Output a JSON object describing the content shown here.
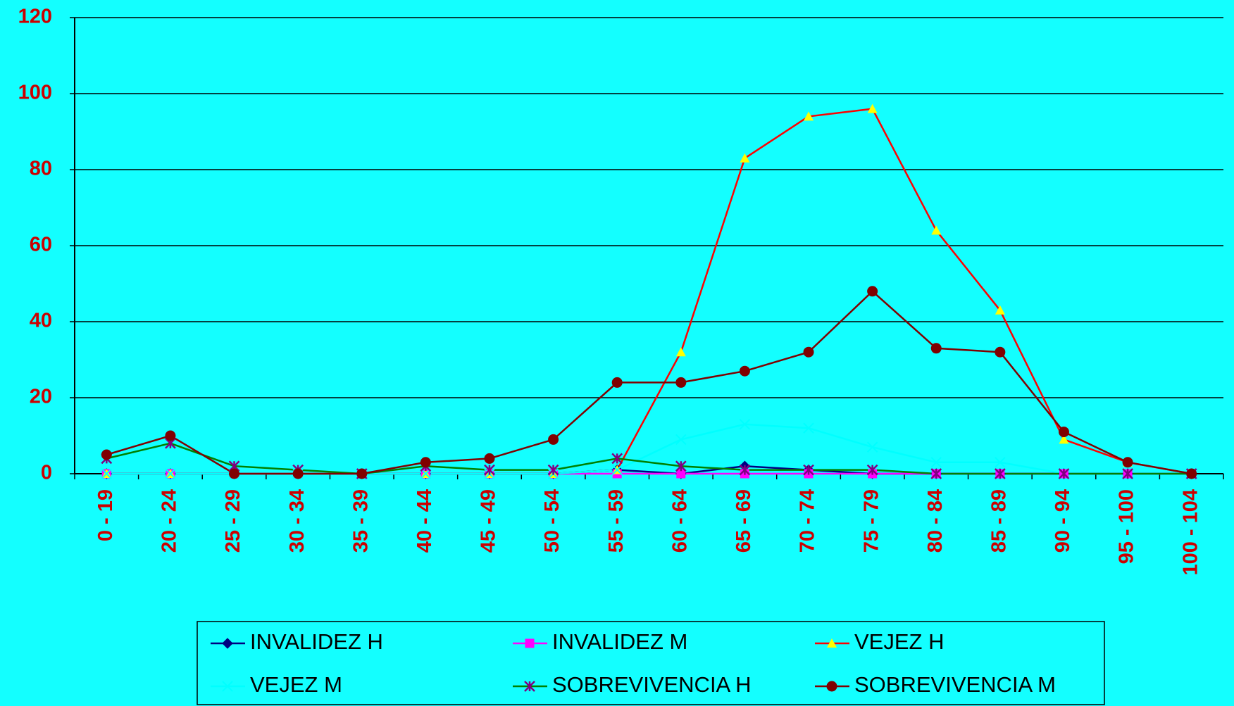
{
  "chart_data": {
    "type": "line",
    "categories": [
      "0 - 19",
      "20 - 24",
      "25 - 29",
      "30 - 34",
      "35 - 39",
      "40 - 44",
      "45 - 49",
      "50 - 54",
      "55 - 59",
      "60 - 64",
      "65 - 69",
      "70 - 74",
      "75 - 79",
      "80 - 84",
      "85 - 89",
      "90 - 94",
      "95 - 100",
      "100 - 104"
    ],
    "series": [
      {
        "name": "INVALIDEZ H",
        "color": "#000080",
        "marker_color": "#000080",
        "marker": "diamond",
        "values": [
          0,
          0,
          0,
          0,
          0,
          0,
          0,
          0,
          1,
          0,
          2,
          1,
          0,
          0,
          0,
          0,
          0,
          0
        ]
      },
      {
        "name": "INVALIDEZ M",
        "color": "#ff00ff",
        "marker_color": "#ff00ff",
        "marker": "square",
        "values": [
          0,
          0,
          0,
          0,
          0,
          0,
          0,
          0,
          0,
          0,
          0,
          0,
          0,
          0,
          0,
          0,
          0,
          0
        ]
      },
      {
        "name": "VEJEZ H",
        "color": "#ff0000",
        "marker_color": "#ffff00",
        "marker": "triangle",
        "values": [
          0,
          0,
          0,
          0,
          0,
          0,
          0,
          0,
          1,
          32,
          83,
          94,
          96,
          64,
          43,
          9,
          3,
          0
        ]
      },
      {
        "name": "VEJEZ M",
        "color": "#00ffff",
        "marker_color": "#00ffff",
        "marker": "x",
        "values": [
          0,
          0,
          0,
          0,
          0,
          0,
          0,
          0,
          1,
          9,
          13,
          12,
          7,
          3,
          3,
          0,
          0,
          0
        ]
      },
      {
        "name": "SOBREVIVENCIA H",
        "color": "#008000",
        "marker_color": "#800080",
        "marker": "star",
        "values": [
          4,
          8,
          2,
          1,
          0,
          2,
          1,
          1,
          4,
          2,
          1,
          1,
          1,
          0,
          0,
          0,
          0,
          0
        ]
      },
      {
        "name": "SOBREVIVENCIA M",
        "color": "#800000",
        "marker_color": "#800000",
        "marker": "circle",
        "values": [
          5,
          10,
          0,
          0,
          0,
          3,
          4,
          9,
          24,
          24,
          27,
          32,
          48,
          33,
          32,
          11,
          3,
          0
        ]
      }
    ],
    "ylim": [
      0,
      120
    ],
    "yticks": [
      0,
      20,
      40,
      60,
      80,
      100,
      120
    ],
    "grid": true,
    "legend": "bottom"
  }
}
